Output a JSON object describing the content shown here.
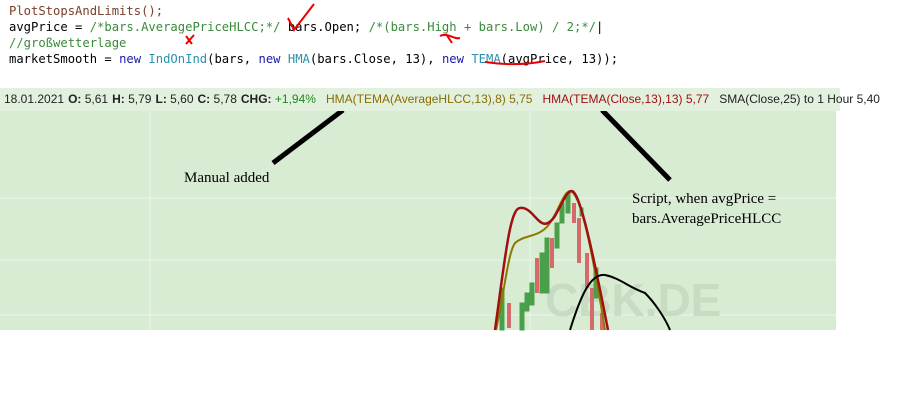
{
  "code": {
    "line1": "PlotStopsAndLimits();",
    "line2a": "avgPrice = ",
    "line2b": "/*bars.AveragePriceHLCC;*/",
    "line2c": " bars.Open; ",
    "line2d": "/*(bars.High + bars.Low) / 2;*/",
    "line3": "//großwetterlage",
    "line4a": "marketSmooth = ",
    "kw_new": "new",
    "line4b": "IndOnInd",
    "line4c": "(bars, ",
    "line4d": "HMA",
    "line4e": "(bars.Close, 13), ",
    "line4f": "TEMA",
    "line4g": "(avgPrice, 13));"
  },
  "chart": {
    "date": "18.01.2021",
    "o_label": "O:",
    "o": "5,61",
    "h_label": "H:",
    "h": "5,79",
    "l_label": "L:",
    "l": "5,60",
    "c_label": "C:",
    "c": "5,78",
    "chg_label": "CHG:",
    "chg": "+1,94%",
    "ind1": "HMA(TEMA(AverageHLCC,13),8) 5,75",
    "ind2": "HMA(TEMA(Close,13),13) 5,77",
    "ind3": "SMA(Close,25) to 1 Hour 5,40",
    "colors": {
      "ind1": "#8a6d00",
      "ind2": "#a01010",
      "chg": "#1e8a1e",
      "background": "#d8ebd3"
    },
    "watermark": "CBK.DE"
  },
  "annotations": {
    "manual": "Manual added",
    "script1": "Script, when avgPrice =",
    "script2": "bars.AveragePriceHLCC"
  }
}
